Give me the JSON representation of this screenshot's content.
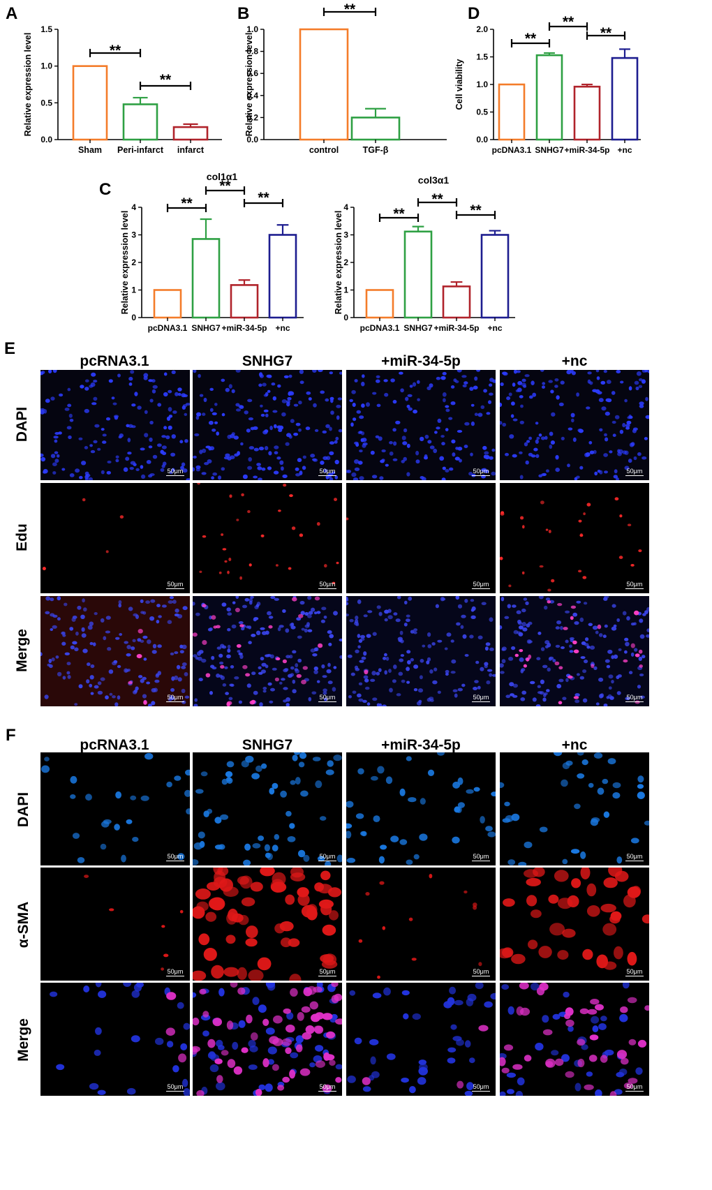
{
  "panel_labels": {
    "A": "A",
    "B": "B",
    "C": "C",
    "D": "D",
    "E": "E",
    "F": "F"
  },
  "colors": {
    "orange": "#F47C2A",
    "green": "#2EA043",
    "red": "#B0232B",
    "blue": "#1D1D8F"
  },
  "chart_data": [
    {
      "id": "A",
      "type": "bar",
      "title": "",
      "ylabel": "Relative expression level",
      "ylim": [
        0,
        1.5
      ],
      "yticks": [
        "0.0",
        "0.5",
        "1.0",
        "1.5"
      ],
      "categories": [
        "Sham",
        "Peri-infarct",
        "infarct"
      ],
      "values": [
        1.0,
        0.48,
        0.17
      ],
      "errors": [
        0,
        0.09,
        0.04
      ],
      "colors": [
        "#F47C2A",
        "#2EA043",
        "#B0232B"
      ],
      "significance": [
        {
          "from": 0,
          "to": 1,
          "label": "**"
        },
        {
          "from": 1,
          "to": 2,
          "label": "**"
        }
      ]
    },
    {
      "id": "B",
      "type": "bar",
      "title": "",
      "ylabel": "Relative expression level",
      "ylim": [
        0,
        1.0
      ],
      "yticks": [
        "0.0",
        "0.2",
        "0.4",
        "0.6",
        "0.8",
        "1.0"
      ],
      "categories": [
        "control",
        "TGF-β"
      ],
      "values": [
        1.0,
        0.2
      ],
      "errors": [
        0,
        0.08
      ],
      "colors": [
        "#F47C2A",
        "#2EA043"
      ],
      "significance": [
        {
          "from": 0,
          "to": 1,
          "label": "**"
        }
      ]
    },
    {
      "id": "D",
      "type": "bar",
      "title": "",
      "ylabel": "Cell viability",
      "ylim": [
        0,
        2.0
      ],
      "yticks": [
        "0.0",
        "0.5",
        "1.0",
        "1.5",
        "2.0"
      ],
      "categories": [
        "pcDNA3.1",
        "SNHG7",
        "+miR-34-5p",
        "+nc"
      ],
      "values": [
        1.0,
        1.53,
        0.96,
        1.48
      ],
      "errors": [
        0,
        0.04,
        0.04,
        0.16
      ],
      "colors": [
        "#F47C2A",
        "#2EA043",
        "#B0232B",
        "#1D1D8F"
      ],
      "significance": [
        {
          "from": 0,
          "to": 1,
          "label": "**"
        },
        {
          "from": 1,
          "to": 2,
          "label": "**"
        },
        {
          "from": 2,
          "to": 3,
          "label": "**"
        }
      ]
    },
    {
      "id": "C1",
      "type": "bar",
      "title": "col1α1",
      "ylabel": "Relative expression level",
      "ylim": [
        0,
        4
      ],
      "yticks": [
        "0",
        "1",
        "2",
        "3",
        "4"
      ],
      "categories": [
        "pcDNA3.1",
        "SNHG7",
        "+miR-34-5p",
        "+nc"
      ],
      "values": [
        1.0,
        2.85,
        1.18,
        3.0
      ],
      "errors": [
        0,
        0.72,
        0.18,
        0.36
      ],
      "colors": [
        "#F47C2A",
        "#2EA043",
        "#B0232B",
        "#1D1D8F"
      ],
      "significance": [
        {
          "from": 0,
          "to": 1,
          "label": "**"
        },
        {
          "from": 1,
          "to": 2,
          "label": "**"
        },
        {
          "from": 2,
          "to": 3,
          "label": "**"
        }
      ]
    },
    {
      "id": "C2",
      "type": "bar",
      "title": "col3α1",
      "ylabel": "Relative expression level",
      "ylim": [
        0,
        4
      ],
      "yticks": [
        "0",
        "1",
        "2",
        "3",
        "4"
      ],
      "categories": [
        "pcDNA3.1",
        "SNHG7",
        "+miR-34-5p",
        "+nc"
      ],
      "values": [
        1.0,
        3.12,
        1.13,
        3.0
      ],
      "errors": [
        0,
        0.18,
        0.16,
        0.15
      ],
      "colors": [
        "#F47C2A",
        "#2EA043",
        "#B0232B",
        "#1D1D8F"
      ],
      "significance": [
        {
          "from": 0,
          "to": 1,
          "label": "**"
        },
        {
          "from": 1,
          "to": 2,
          "label": "**"
        },
        {
          "from": 2,
          "to": 3,
          "label": "**"
        }
      ]
    }
  ],
  "microscopy": {
    "E": {
      "columns": [
        "pcRNA3.1",
        "SNHG7",
        "+miR-34-5p",
        "+nc"
      ],
      "rows": [
        "DAPI",
        "Edu",
        "Merge"
      ],
      "scale_bar": "50μm"
    },
    "F": {
      "columns": [
        "pcRNA3.1",
        "SNHG7",
        "+miR-34-5p",
        "+nc"
      ],
      "rows": [
        "DAPI",
        "α-SMA",
        "Merge"
      ],
      "scale_bar": "50μm"
    }
  }
}
